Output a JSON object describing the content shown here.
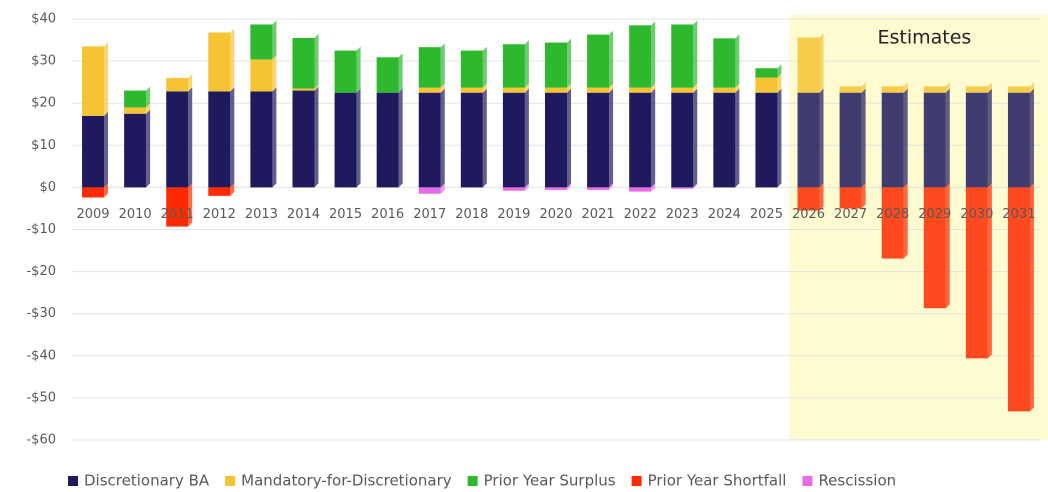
{
  "chart_data": {
    "type": "stacked_bar",
    "categories": [
      "2009",
      "2010",
      "2011",
      "2012",
      "2013",
      "2014",
      "2015",
      "2016",
      "2017",
      "2018",
      "2019",
      "2020",
      "2021",
      "2022",
      "2023",
      "2024",
      "2025",
      "2026",
      "2027",
      "2028",
      "2029",
      "2030",
      "2031"
    ],
    "series": [
      {
        "name": "Discretionary BA",
        "color": "#1f1a5e",
        "values": [
          17,
          17.5,
          22.8,
          22.8,
          22.8,
          23,
          22.5,
          22.5,
          22.5,
          22.5,
          22.5,
          22.5,
          22.5,
          22.5,
          22.5,
          22.5,
          22.5,
          22.5,
          22.5,
          22.5,
          22.5,
          22.5,
          22.5
        ]
      },
      {
        "name": "Mandatory-for-Discretionary",
        "color": "#f5c334",
        "values": [
          16.5,
          1.5,
          3.2,
          14,
          7.6,
          0.5,
          0,
          0,
          1.2,
          1.2,
          1.2,
          1.2,
          1.2,
          1.2,
          1.2,
          1.2,
          3.6,
          13.1,
          1.5,
          1.5,
          1.5,
          1.5,
          1.5
        ]
      },
      {
        "name": "Prior Year Surplus",
        "color": "#2eb82e",
        "values": [
          0,
          4,
          0,
          0,
          8.3,
          12,
          10,
          8.4,
          9.6,
          8.8,
          10.3,
          10.7,
          12.6,
          14.8,
          15,
          11.7,
          2.2,
          0,
          0,
          0,
          0,
          0,
          0
        ]
      },
      {
        "name": "Prior Year Shortfall",
        "color": "#ff2a00",
        "values": [
          -2.4,
          0,
          -9.3,
          -2,
          0,
          0,
          0,
          0,
          0,
          0,
          0,
          0,
          0,
          0,
          0,
          0,
          0,
          -5.5,
          -5,
          -16.9,
          -28.7,
          -40.6,
          -53.2
        ]
      },
      {
        "name": "Rescission",
        "color": "#e86be8",
        "values": [
          0,
          0,
          0,
          0,
          0,
          0,
          0,
          0,
          -1.5,
          0,
          -0.8,
          -0.6,
          -0.6,
          -1,
          -0.3,
          0,
          0,
          0,
          0,
          0,
          0,
          0,
          0
        ]
      }
    ],
    "ylim": [
      -60,
      40
    ],
    "yticks": [
      {
        "value": 40,
        "label": "$40"
      },
      {
        "value": 30,
        "label": "$30"
      },
      {
        "value": 20,
        "label": "$20"
      },
      {
        "value": 10,
        "label": "$10"
      },
      {
        "value": 0,
        "label": "$0"
      },
      {
        "value": -10,
        "label": "-$10"
      },
      {
        "value": -20,
        "label": "-$20"
      },
      {
        "value": -30,
        "label": "-$30"
      },
      {
        "value": -40,
        "label": "-$40"
      },
      {
        "value": -50,
        "label": "-$50"
      },
      {
        "value": -60,
        "label": "-$60"
      }
    ],
    "grid": true,
    "legend": "bottom",
    "annotation": {
      "text": "Estimates",
      "from": "2026",
      "color": "#fffbd0"
    }
  }
}
